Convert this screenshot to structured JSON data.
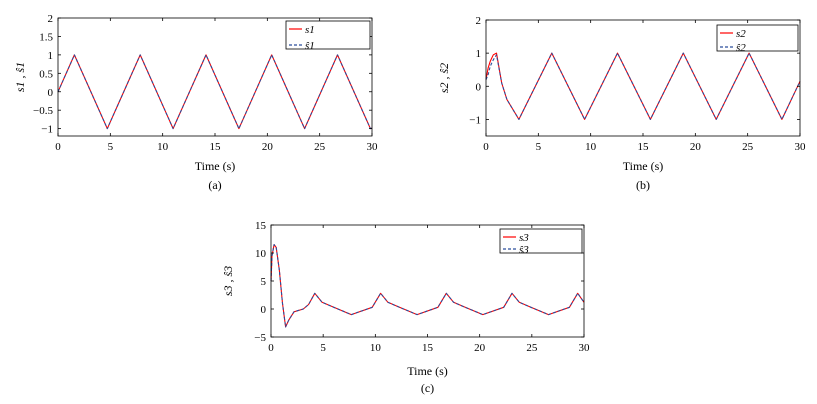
{
  "figure": {
    "panels": [
      {
        "caption": "(a)",
        "legend": [
          "s1",
          "ŝ1"
        ],
        "ylabel": "s1 , ŝ1"
      },
      {
        "caption": "(b)",
        "legend": [
          "s2",
          "ŝ2"
        ],
        "ylabel": "s2 , ŝ2"
      },
      {
        "caption": "(c)",
        "legend": [
          "s3",
          "ŝ3"
        ],
        "ylabel": "s3 , ŝ3"
      }
    ]
  },
  "chart_data": [
    {
      "type": "line",
      "title": "",
      "xlabel": "Time (s)",
      "ylabel": "s1 , ŝ1",
      "xlim": [
        0,
        30
      ],
      "ylim": [
        -1.2,
        2
      ],
      "xticks": [
        0,
        5,
        10,
        15,
        20,
        25,
        30
      ],
      "yticks": [
        -1,
        -0.5,
        0,
        0.5,
        1,
        1.5,
        2
      ],
      "legend_position": "top-right",
      "grid": false,
      "series": [
        {
          "name": "s1",
          "color": "#ff0000",
          "style": "solid",
          "x": [
            0,
            1.5708,
            4.7124,
            7.854,
            10.9956,
            14.1372,
            17.2788,
            20.4204,
            23.5619,
            26.7035,
            29.8451,
            30
          ],
          "y": [
            0,
            1,
            -1,
            1,
            -1,
            1,
            -1,
            1,
            -1,
            1,
            -1,
            -0.988
          ]
        },
        {
          "name": "ŝ1",
          "color": "#2b4d9c",
          "style": "dashed",
          "x": [
            0,
            1.5708,
            4.7124,
            7.854,
            10.9956,
            14.1372,
            17.2788,
            20.4204,
            23.5619,
            26.7035,
            29.8451,
            30
          ],
          "y": [
            0,
            1,
            -1,
            1,
            -1,
            1,
            -1,
            1,
            -1,
            1,
            -1,
            -0.988
          ]
        }
      ]
    },
    {
      "type": "line",
      "title": "",
      "xlabel": "Time (s)",
      "ylabel": "s2 , ŝ2",
      "xlim": [
        0,
        30
      ],
      "ylim": [
        -1.5,
        2
      ],
      "xticks": [
        0,
        5,
        10,
        15,
        20,
        25,
        30
      ],
      "yticks": [
        -1,
        0,
        1,
        2
      ],
      "legend_position": "top-right",
      "grid": false,
      "series": [
        {
          "name": "s2",
          "color": "#ff0000",
          "style": "solid",
          "x": [
            0,
            0.2,
            0.4,
            0.7,
            1,
            1.5,
            2,
            3.1416,
            6.2832,
            9.4248,
            12.5664,
            15.708,
            18.8496,
            21.9911,
            25.1327,
            28.2743,
            30
          ],
          "y": [
            0.2,
            0.55,
            0.75,
            0.95,
            1.0,
            0.1,
            -0.4,
            -1,
            1,
            -1,
            1,
            -1,
            1,
            -1,
            1,
            -1,
            0.15
          ]
        },
        {
          "name": "ŝ2",
          "color": "#2b4d9c",
          "style": "dashed",
          "x": [
            0,
            0.2,
            0.4,
            0.7,
            1,
            1.5,
            2,
            3.1416,
            6.2832,
            9.4248,
            12.5664,
            15.708,
            18.8496,
            21.9911,
            25.1327,
            28.2743,
            30
          ],
          "y": [
            0.2,
            0.35,
            0.6,
            0.8,
            0.95,
            0.1,
            -0.4,
            -1,
            1,
            -1,
            1,
            -1,
            1,
            -1,
            1,
            -1,
            0.15
          ]
        }
      ]
    },
    {
      "type": "line",
      "title": "",
      "xlabel": "Time (s)",
      "ylabel": "s3 , ŝ3",
      "xlim": [
        0,
        30
      ],
      "ylim": [
        -5,
        15
      ],
      "xticks": [
        0,
        5,
        10,
        15,
        20,
        25,
        30
      ],
      "yticks": [
        -5,
        0,
        5,
        10,
        15
      ],
      "legend_position": "top-right",
      "grid": false,
      "series": [
        {
          "name": "s3",
          "color": "#ff0000",
          "style": "solid",
          "x": [
            0,
            0.1,
            0.3,
            0.5,
            0.8,
            1.1,
            1.4,
            1.7,
            2.2,
            3.1,
            3.6,
            4.2,
            4.9,
            5.9,
            7.7,
            9.7,
            10.5,
            11.2,
            12.2,
            14,
            16,
            16.8,
            17.5,
            18.5,
            20.3,
            22.3,
            23.1,
            23.8,
            24.8,
            26.6,
            28.6,
            29.4,
            30
          ],
          "y": [
            5,
            9.5,
            11.5,
            11,
            7,
            1,
            -3.2,
            -2,
            -0.5,
            0,
            0.8,
            2.8,
            1.2,
            0.4,
            -1,
            0.3,
            2.8,
            1.2,
            0.4,
            -1,
            0.3,
            2.8,
            1.2,
            0.4,
            -1,
            0.3,
            2.8,
            1.2,
            0.4,
            -1,
            0.3,
            2.8,
            1.2
          ]
        },
        {
          "name": "ŝ3",
          "color": "#2b4d9c",
          "style": "dashed",
          "x": [
            0,
            0.1,
            0.3,
            0.5,
            0.8,
            1.1,
            1.4,
            1.7,
            2.2,
            3.1,
            3.6,
            4.2,
            4.9,
            5.9,
            7.7,
            9.7,
            10.5,
            11.2,
            12.2,
            14,
            16,
            16.8,
            17.5,
            18.5,
            20.3,
            22.3,
            23.1,
            23.8,
            24.8,
            26.6,
            28.6,
            29.4,
            30
          ],
          "y": [
            5,
            9.5,
            11.5,
            11,
            7,
            1,
            -3.2,
            -2,
            -0.5,
            0,
            0.8,
            2.8,
            1.2,
            0.4,
            -1,
            0.3,
            2.8,
            1.2,
            0.4,
            -1,
            0.3,
            2.8,
            1.2,
            0.4,
            -1,
            0.3,
            2.8,
            1.2,
            0.4,
            -1,
            0.3,
            2.8,
            1.2
          ]
        }
      ]
    }
  ]
}
